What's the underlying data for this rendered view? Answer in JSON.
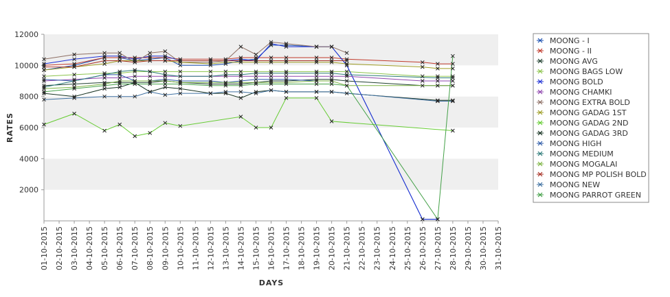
{
  "chart_data": {
    "type": "line",
    "title": "",
    "xlabel": "DAYS",
    "ylabel": "RATES",
    "ylim": [
      0,
      12000
    ],
    "yticks": [
      2000,
      4000,
      6000,
      8000,
      10000,
      12000
    ],
    "y_tick_labels": [
      "2000",
      "4000",
      "6000",
      "8000",
      "10000",
      "12000"
    ],
    "grid": "alternating horizontal bands",
    "legend_position": "right",
    "x": [
      "01-10-2015",
      "02-10-2015",
      "03-10-2015",
      "04-10-2015",
      "05-10-2015",
      "06-10-2015",
      "07-10-2015",
      "08-10-2015",
      "09-10-2015",
      "10-10-2015",
      "11-10-2015",
      "12-10-2015",
      "13-10-2015",
      "14-10-2015",
      "15-10-2015",
      "16-10-2015",
      "17-10-2015",
      "18-10-2015",
      "19-10-2015",
      "20-10-2015",
      "21-10-2015",
      "22-10-2015",
      "23-10-2015",
      "24-10-2015",
      "25-10-2015",
      "26-10-2015",
      "27-10-2015",
      "28-10-2015",
      "29-10-2015",
      "30-10-2015",
      "31-10-2015"
    ],
    "series": [
      {
        "name": "MOONG - I",
        "color": "#1a4fb0",
        "values": [
          9700,
          null,
          10000,
          null,
          10500,
          10500,
          10300,
          10400,
          10500,
          10000,
          null,
          10000,
          10100,
          10300,
          10400,
          11300,
          11300,
          null,
          11200,
          11200,
          10000,
          null,
          null,
          null,
          null,
          100,
          100,
          null,
          null,
          null,
          null
        ]
      },
      {
        "name": "MOONG - II",
        "color": "#c0392b",
        "values": [
          10000,
          null,
          10100,
          null,
          10500,
          10500,
          10500,
          10500,
          10500,
          10400,
          null,
          10400,
          10400,
          10500,
          10500,
          10500,
          10500,
          null,
          10500,
          10500,
          10400,
          null,
          null,
          null,
          null,
          10200,
          10100,
          10100,
          null,
          null,
          null
        ]
      },
      {
        "name": "MOONG AVG",
        "color": "#1f3f2f",
        "values": [
          8700,
          null,
          8800,
          null,
          8900,
          8900,
          8900,
          8900,
          9000,
          8900,
          null,
          8800,
          8800,
          8800,
          8900,
          9000,
          9000,
          null,
          9100,
          9100,
          9000,
          null,
          null,
          null,
          null,
          8700,
          8700,
          8700,
          null,
          null,
          null
        ]
      },
      {
        "name": "MOONG BAGS LOW",
        "color": "#8bc34a",
        "values": [
          9300,
          null,
          9400,
          null,
          9500,
          9500,
          9600,
          9600,
          9600,
          9600,
          null,
          9600,
          9600,
          9600,
          9600,
          9600,
          9600,
          null,
          9600,
          9600,
          9600,
          null,
          null,
          null,
          null,
          9300,
          9300,
          9300,
          null,
          null,
          null
        ]
      },
      {
        "name": "MOONG BOLD",
        "color": "#1d2fd6",
        "values": [
          10100,
          null,
          10400,
          null,
          10600,
          10600,
          10400,
          10600,
          10600,
          10300,
          null,
          10300,
          10300,
          10400,
          10300,
          11400,
          11200,
          null,
          11200,
          11200,
          10000,
          null,
          null,
          null,
          null,
          100,
          100,
          null,
          null,
          null,
          null
        ]
      },
      {
        "name": "MOONG CHAMKI",
        "color": "#8e44ad",
        "values": [
          9000,
          null,
          9100,
          null,
          9200,
          9200,
          9300,
          9300,
          9300,
          9300,
          null,
          9300,
          9300,
          9300,
          9300,
          9300,
          9300,
          null,
          9300,
          9300,
          9300,
          null,
          null,
          null,
          null,
          9000,
          9000,
          9000,
          null,
          null,
          null
        ]
      },
      {
        "name": "MOONG EXTRA BOLD",
        "color": "#8d6e63",
        "values": [
          10400,
          null,
          10700,
          null,
          10800,
          10800,
          10200,
          10800,
          10900,
          10200,
          null,
          10200,
          10300,
          11200,
          10700,
          11500,
          11400,
          null,
          11200,
          11200,
          10800,
          null,
          null,
          null,
          null,
          null,
          null,
          null,
          null,
          null,
          null
        ]
      },
      {
        "name": "MOONG GADAG 1ST",
        "color": "#9e9d24",
        "values": [
          9700,
          null,
          9900,
          null,
          10100,
          10300,
          10300,
          10300,
          10300,
          10200,
          null,
          10100,
          10200,
          10200,
          10200,
          10200,
          10200,
          null,
          10200,
          10200,
          10100,
          null,
          null,
          null,
          null,
          9900,
          9800,
          9800,
          null,
          null,
          null
        ]
      },
      {
        "name": "MOONG GADAG 2ND",
        "color": "#66cc33",
        "values": [
          6200,
          null,
          6900,
          null,
          5800,
          6200,
          5450,
          5650,
          6300,
          6100,
          null,
          null,
          null,
          6700,
          6000,
          6000,
          7900,
          null,
          7900,
          6400,
          null,
          null,
          null,
          null,
          null,
          null,
          null,
          5800,
          null,
          null,
          null
        ]
      },
      {
        "name": "MOONG GADAG 3RD",
        "color": "#14301f",
        "values": [
          8200,
          null,
          8000,
          null,
          8500,
          8600,
          8900,
          8300,
          8600,
          8500,
          null,
          8200,
          8200,
          7900,
          8300,
          8400,
          8300,
          null,
          8300,
          8300,
          8200,
          null,
          null,
          null,
          null,
          null,
          7750,
          7750,
          null,
          null,
          null
        ]
      },
      {
        "name": "MOONG HIGH",
        "color": "#2e5aa8",
        "values": [
          9100,
          null,
          9000,
          null,
          9400,
          9400,
          9000,
          9000,
          9100,
          9000,
          null,
          9000,
          8900,
          9000,
          9100,
          9100,
          9100,
          null,
          9000,
          9000,
          null,
          null,
          null,
          null,
          null,
          null,
          null,
          null,
          null,
          null,
          null
        ]
      },
      {
        "name": "MOONG MEDIUM",
        "color": "#2b7a78",
        "values": [
          8600,
          null,
          9000,
          null,
          9400,
          9600,
          9700,
          9600,
          9400,
          9300,
          null,
          9300,
          9400,
          9400,
          9500,
          9500,
          9500,
          null,
          9500,
          9500,
          9400,
          null,
          null,
          null,
          null,
          null,
          9200,
          9200,
          null,
          null,
          null
        ]
      },
      {
        "name": "MOONG MOGALAI",
        "color": "#7cb342",
        "values": [
          8500,
          null,
          8600,
          null,
          8800,
          9000,
          9000,
          9000,
          9000,
          8900,
          null,
          8900,
          8900,
          8900,
          8900,
          8900,
          8900,
          null,
          9000,
          9000,
          8700,
          null,
          null,
          null,
          null,
          null,
          8700,
          8700,
          null,
          null,
          null
        ]
      },
      {
        "name": "MOONG MP POLISH BOLD",
        "color": "#a93226",
        "values": [
          9900,
          null,
          9900,
          null,
          10300,
          10300,
          10200,
          10300,
          10300,
          10300,
          null,
          10300,
          10300,
          10300,
          10300,
          10300,
          10300,
          null,
          10300,
          10300,
          10300,
          null,
          null,
          null,
          null,
          null,
          null,
          null,
          null,
          null,
          null
        ]
      },
      {
        "name": "MOONG NEW",
        "color": "#3d6fa0",
        "values": [
          7800,
          null,
          7900,
          null,
          8000,
          8000,
          8000,
          8300,
          8100,
          8200,
          null,
          8200,
          8300,
          8300,
          8200,
          8400,
          8300,
          null,
          8300,
          8300,
          null,
          null,
          null,
          null,
          null,
          null,
          7700,
          7700,
          null,
          null,
          null
        ]
      },
      {
        "name": "MOONG PARROT GREEN",
        "color": "#43a047",
        "values": [
          8300,
          null,
          8500,
          null,
          8700,
          8800,
          8800,
          8800,
          8800,
          8800,
          null,
          8700,
          8700,
          8700,
          8800,
          8800,
          8800,
          null,
          8800,
          8800,
          8700,
          null,
          null,
          null,
          null,
          null,
          100,
          10600,
          null,
          null,
          null
        ]
      }
    ]
  }
}
